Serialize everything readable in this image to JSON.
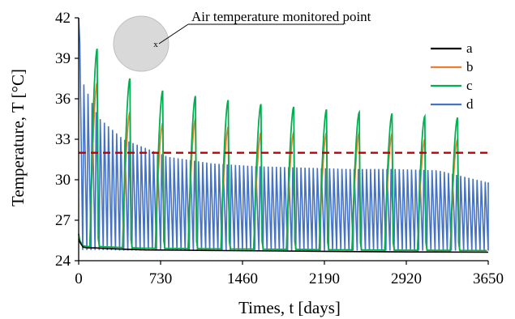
{
  "chart_data": {
    "type": "line",
    "xlabel": "Times, t [days]",
    "ylabel": "Temperature, T [°C]",
    "xlim": [
      0,
      3650
    ],
    "ylim": [
      24,
      42
    ],
    "xticks": [
      0,
      730,
      1460,
      2190,
      2920,
      3650
    ],
    "yticks": [
      24,
      27,
      30,
      33,
      36,
      39,
      42
    ],
    "xtick_labels": [
      "0",
      "730",
      "1460",
      "2190",
      "2920",
      "3650"
    ],
    "ytick_labels": [
      "24",
      "27",
      "30",
      "33",
      "36",
      "39",
      "42"
    ],
    "legend_position": "right",
    "annotation": "Air temperature monitored point",
    "threshold": {
      "value": 32,
      "color": "#c00000",
      "style": "dashed"
    },
    "series": [
      {
        "name": "a",
        "color": "#000000",
        "x": [
          0,
          15,
          40,
          80,
          150,
          250,
          400,
          600,
          900,
          1300,
          1800,
          2400,
          3000,
          3650
        ],
        "y": [
          25.6,
          25.3,
          25.0,
          24.95,
          24.95,
          24.9,
          24.85,
          24.8,
          24.78,
          24.75,
          24.72,
          24.68,
          24.65,
          24.63
        ]
      },
      {
        "name": "b",
        "color": "#ed7d31",
        "period": 292,
        "cycles": [
          {
            "start": 0,
            "peak": 26.0
          },
          {
            "start": 100,
            "peak": 37.2
          },
          {
            "start": 392,
            "peak": 35.0
          },
          {
            "start": 684,
            "peak": 34.2
          },
          {
            "start": 976,
            "peak": 34.5
          },
          {
            "start": 1268,
            "peak": 33.9
          },
          {
            "start": 1560,
            "peak": 33.5
          },
          {
            "start": 1852,
            "peak": 33.5
          },
          {
            "start": 2144,
            "peak": 33.5
          },
          {
            "start": 2436,
            "peak": 33.5
          },
          {
            "start": 2728,
            "peak": 33.4
          },
          {
            "start": 3020,
            "peak": 33.0
          },
          {
            "start": 3312,
            "peak": 33.0
          }
        ]
      },
      {
        "name": "c",
        "color": "#00b050",
        "period": 292,
        "cycles": [
          {
            "start": 0,
            "peak": 26.0
          },
          {
            "start": 100,
            "peak": 39.7
          },
          {
            "start": 392,
            "peak": 37.5
          },
          {
            "start": 684,
            "peak": 36.6
          },
          {
            "start": 976,
            "peak": 36.2
          },
          {
            "start": 1268,
            "peak": 35.9
          },
          {
            "start": 1560,
            "peak": 35.6
          },
          {
            "start": 1852,
            "peak": 35.4
          },
          {
            "start": 2144,
            "peak": 35.2
          },
          {
            "start": 2436,
            "peak": 35.0
          },
          {
            "start": 2728,
            "peak": 34.9
          },
          {
            "start": 3020,
            "peak": 34.7
          },
          {
            "start": 3312,
            "peak": 34.6
          }
        ]
      },
      {
        "name": "d",
        "color": "#4472c4",
        "x": [
          0,
          30,
          180,
          400,
          800,
          1200,
          1600,
          2000,
          2400,
          2800,
          3200,
          3650
        ],
        "peak": [
          42.0,
          37.4,
          34.6,
          33.0,
          31.7,
          31.2,
          31.0,
          30.9,
          30.8,
          30.8,
          30.7,
          29.8
        ],
        "trough": [
          25.6,
          24.8,
          24.8,
          24.75,
          24.75,
          24.75,
          24.75,
          24.75,
          24.75,
          24.75,
          24.75,
          24.75
        ],
        "cycle_days": 36.5
      }
    ]
  }
}
